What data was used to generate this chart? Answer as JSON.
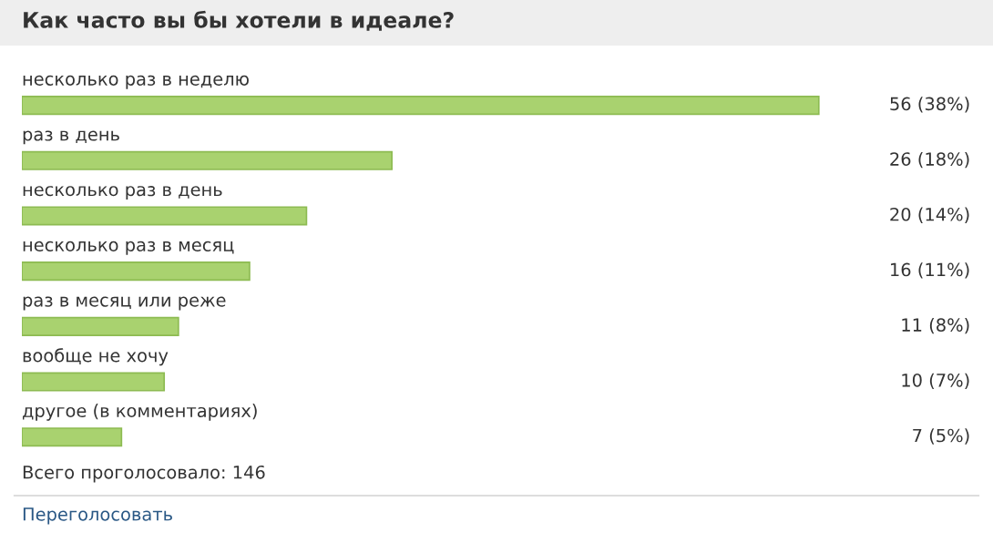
{
  "chart_data": {
    "type": "bar",
    "orientation": "horizontal",
    "title": "Как часто вы бы хотели в идеале?",
    "categories": [
      "несколько раз в неделю",
      "раз в день",
      "несколько раз в день",
      "несколько раз в месяц",
      "раз в месяц или реже",
      "вообще не хочу",
      "другое (в комментариях)"
    ],
    "values": [
      56,
      26,
      20,
      16,
      11,
      10,
      7
    ],
    "value_labels": [
      "56 (38%)",
      "26 (18%)",
      "20 (14%)",
      "16 (11%)",
      "11 (8%)",
      "10 (7%)",
      "7 (5%)"
    ],
    "color": "#a9d26f",
    "annotations": [
      "Всего проголосовало: 146",
      "Переголосовать"
    ]
  }
}
